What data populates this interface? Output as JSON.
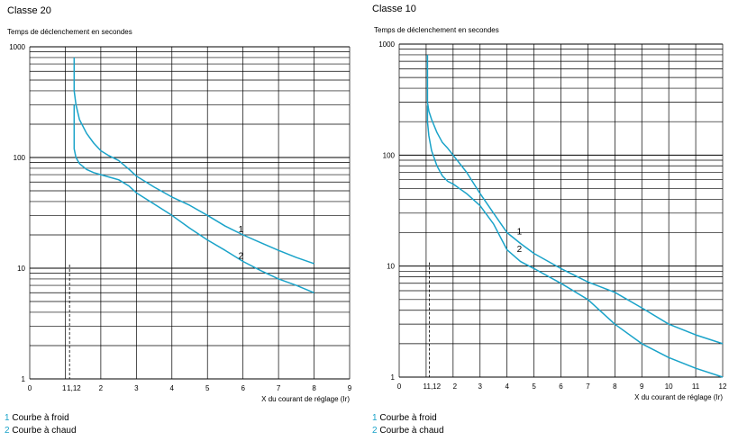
{
  "chart_data": [
    {
      "type": "line",
      "title": "Classe 20",
      "ylabel": "Temps de déclenchement en secondes",
      "xlabel": "X du courant de réglage (Ir)",
      "xlim": [
        0,
        9
      ],
      "ylim": [
        1,
        1000
      ],
      "yscale": "log",
      "grid": true,
      "x_ticks": [
        "0",
        "1",
        "1,12",
        "2",
        "3",
        "4",
        "5",
        "6",
        "7",
        "8",
        "9"
      ],
      "x_tick_values": [
        0,
        1,
        1.12,
        2,
        3,
        4,
        5,
        6,
        7,
        8,
        9
      ],
      "y_ticks": [
        "1",
        "10",
        "100",
        "1000"
      ],
      "y_tick_values": [
        1,
        10,
        100,
        1000
      ],
      "marker_x": 1.12,
      "series": [
        {
          "name": "Courbe à froid",
          "label": "1",
          "x": [
            1.25,
            1.25,
            1.3,
            1.4,
            1.6,
            1.8,
            2,
            2.2,
            2.5,
            2.8,
            3,
            3.5,
            4,
            4.5,
            5,
            5.5,
            6,
            6.5,
            7,
            7.5,
            8
          ],
          "values": [
            800,
            400,
            300,
            220,
            165,
            135,
            115,
            105,
            94,
            78,
            68,
            54,
            44,
            37,
            30,
            24,
            20,
            17,
            14.5,
            12.5,
            11
          ]
        },
        {
          "name": "Courbe à chaud",
          "label": "2",
          "x": [
            1.25,
            1.25,
            1.3,
            1.4,
            1.6,
            1.8,
            2,
            2.2,
            2.5,
            2.8,
            3,
            3.5,
            4,
            4.5,
            5,
            5.5,
            6,
            6.5,
            7,
            7.5,
            8
          ],
          "values": [
            300,
            120,
            100,
            88,
            78,
            73,
            70,
            67,
            63,
            55,
            48,
            38,
            30,
            23,
            18,
            14.5,
            11.5,
            9.5,
            8,
            7,
            6
          ]
        }
      ]
    },
    {
      "type": "line",
      "title": "Classe 10",
      "ylabel": "Temps de déclenchement en secondes",
      "xlabel": "X du courant de réglage (Ir)",
      "xlim": [
        0,
        12
      ],
      "ylim": [
        1,
        1000
      ],
      "yscale": "log",
      "grid": true,
      "x_ticks": [
        "0",
        "1",
        "1,12",
        "2",
        "3",
        "4",
        "5",
        "6",
        "7",
        "8",
        "9",
        "10",
        "11",
        "12"
      ],
      "x_tick_values": [
        0,
        1,
        1.12,
        2,
        3,
        4,
        5,
        6,
        7,
        8,
        9,
        10,
        11,
        12
      ],
      "y_ticks": [
        "1",
        "10",
        "100",
        "1000"
      ],
      "y_tick_values": [
        1,
        10,
        100,
        1000
      ],
      "marker_x": 1.12,
      "series": [
        {
          "name": "Courbe à froid",
          "label": "1",
          "x": [
            1.05,
            1.05,
            1.1,
            1.2,
            1.4,
            1.6,
            1.8,
            2,
            2.5,
            3,
            3.5,
            4,
            4.5,
            5,
            6,
            7,
            8,
            9,
            10,
            11,
            12
          ],
          "values": [
            800,
            300,
            250,
            210,
            160,
            130,
            115,
            100,
            70,
            45,
            30,
            20,
            16,
            13,
            9.5,
            7.2,
            5.8,
            4.2,
            3,
            2.4,
            2
          ]
        },
        {
          "name": "Courbe à chaud",
          "label": "2",
          "x": [
            1.05,
            1.05,
            1.1,
            1.2,
            1.4,
            1.6,
            1.8,
            2,
            2.5,
            3,
            3.5,
            4,
            4.5,
            5,
            6,
            7,
            8,
            9,
            10,
            11,
            12
          ],
          "values": [
            280,
            200,
            150,
            110,
            80,
            65,
            58,
            55,
            45,
            35,
            24,
            14,
            11,
            9.5,
            7,
            5,
            3,
            2,
            1.5,
            1.2,
            1
          ]
        }
      ]
    }
  ],
  "legend": {
    "items": [
      {
        "number": "1",
        "text": " Courbe à froid"
      },
      {
        "number": "2",
        "text": " Courbe à chaud"
      }
    ]
  },
  "colors": {
    "curve": "#1aa3c9",
    "grid": "#000000",
    "legend_number": "#1aa3c9"
  }
}
